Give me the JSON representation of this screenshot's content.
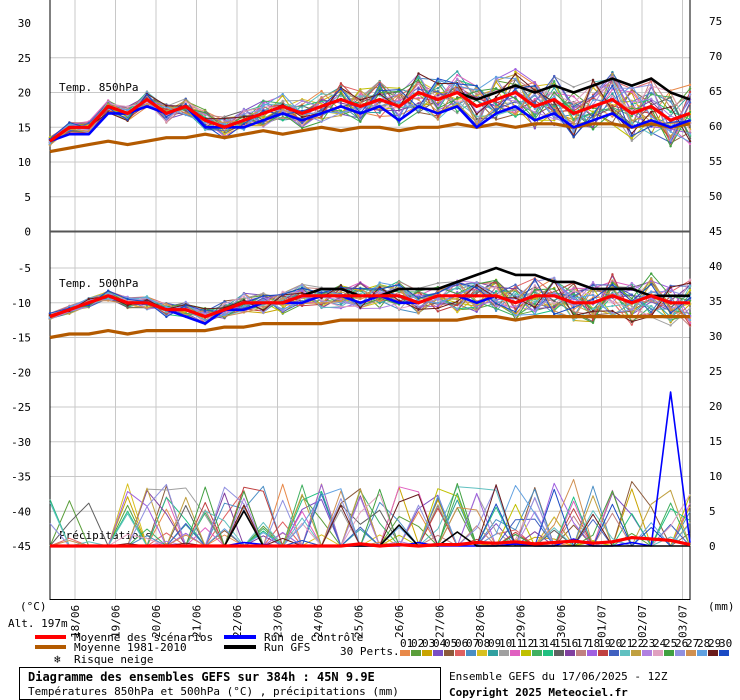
{
  "chart_data": {
    "type": "line",
    "title": "Diagramme des ensembles GEFS sur 384h : 45N 9.9E",
    "subtitle": "Températures 850hPa et 500hPa (°C) , précipitations (mm)",
    "left_axis_unit": "(°C)",
    "right_axis_unit": "(mm)",
    "altitude": "Alt. 197m",
    "left_ticks": [
      "30",
      "25",
      "20",
      "15",
      "10",
      "5",
      "0",
      "-5",
      "-10",
      "-15",
      "-20",
      "-25",
      "-30",
      "-35",
      "-40",
      "-45"
    ],
    "right_ticks": [
      "75",
      "70",
      "65",
      "60",
      "55",
      "50",
      "45",
      "40",
      "35",
      "30",
      "25",
      "20",
      "15",
      "10",
      "5",
      "0"
    ],
    "x_ticks": [
      "18/06",
      "19/06",
      "20/06",
      "21/06",
      "22/06",
      "23/06",
      "24/06",
      "25/06",
      "26/06",
      "27/06",
      "28/06",
      "29/06",
      "30/06",
      "01/07",
      "02/07",
      "03/07"
    ],
    "panel_labels": {
      "t850": "Temp. 850hPa",
      "t500": "Temp. 500hPa",
      "precip": "Précipitations"
    },
    "grid": true,
    "series": [
      {
        "name": "Moyenne des scénarios",
        "color": "#ff0000",
        "t850": [
          13,
          15,
          15,
          18,
          17,
          19,
          17,
          18,
          16,
          15,
          16,
          17,
          18,
          17,
          18,
          19,
          18,
          19,
          18,
          20,
          19,
          20,
          18,
          19,
          20,
          18,
          19,
          17,
          18,
          19,
          17,
          18,
          16,
          17
        ],
        "t500": [
          -12,
          -11,
          -10,
          -9,
          -10,
          -10,
          -11,
          -11,
          -12,
          -11,
          -10,
          -10,
          -10,
          -9,
          -9,
          -9,
          -9,
          -9,
          -9,
          -10,
          -9,
          -9,
          -9,
          -9,
          -10,
          -9,
          -9,
          -10,
          -10,
          -9,
          -10,
          -9,
          -10,
          -10
        ],
        "precip": [
          0,
          0,
          0,
          0,
          0,
          0,
          0,
          0,
          0,
          0,
          0,
          0,
          0,
          0,
          0,
          0,
          0.3,
          0,
          0.2,
          0,
          0.2,
          0.2,
          0.5,
          0.4,
          0.6,
          0.3,
          0.5,
          0.7,
          0.4,
          0.6,
          1.2,
          1.0,
          0.8,
          0.2
        ]
      },
      {
        "name": "Moyenne 1981-2010",
        "color": "#b35a00",
        "t850": [
          11.5,
          12,
          12.5,
          13,
          12.5,
          13,
          13.5,
          13.5,
          14,
          13.5,
          14,
          14.5,
          14,
          14.5,
          15,
          14.5,
          15,
          15,
          14.5,
          15,
          15,
          15.5,
          15,
          15.5,
          15,
          15.5,
          15.5,
          15,
          15.5,
          15.5,
          15,
          15.5,
          15,
          15.5
        ],
        "t500": [
          -15,
          -14.5,
          -14.5,
          -14,
          -14.5,
          -14,
          -14,
          -14,
          -14,
          -13.5,
          -13.5,
          -13,
          -13,
          -13,
          -13,
          -12.5,
          -12.5,
          -12.5,
          -12.5,
          -12.5,
          -12.5,
          -12.5,
          -12,
          -12,
          -12.5,
          -12,
          -12,
          -12,
          -12,
          -12,
          -12,
          -12,
          -12,
          -12
        ]
      },
      {
        "name": "Run de contrôle",
        "color": "#0000ff",
        "t850": [
          13,
          14,
          14,
          17,
          17,
          18,
          17,
          18,
          15,
          15,
          15,
          16,
          17,
          16,
          17,
          18,
          17,
          18,
          16,
          18,
          17,
          18,
          15,
          17,
          18,
          16,
          17,
          15,
          16,
          17,
          15,
          16,
          15,
          16
        ],
        "t500": [
          -12,
          -11,
          -10,
          -9,
          -10,
          -10,
          -11,
          -12,
          -13,
          -11,
          -11,
          -10,
          -10,
          -10,
          -9,
          -9,
          -10,
          -9,
          -10,
          -10,
          -9,
          -9,
          -10,
          -9,
          -10,
          -9,
          -9,
          -10,
          -10,
          -9,
          -10,
          -9,
          -10,
          -10
        ],
        "precip": [
          0,
          0,
          0,
          0,
          0,
          0,
          0,
          0,
          0,
          0,
          0.5,
          0.2,
          0,
          0,
          0,
          0,
          0,
          0,
          0,
          0.5,
          0,
          0,
          0,
          0,
          0.3,
          0,
          0,
          1,
          0,
          0,
          0.5,
          0,
          22,
          0.5
        ]
      },
      {
        "name": "Run GFS",
        "color": "#000000",
        "t850": [
          13,
          15,
          15,
          18,
          17,
          19,
          17,
          18,
          16,
          15,
          16,
          17,
          18,
          17,
          18,
          19,
          18,
          19,
          18,
          20,
          19,
          20,
          19,
          20,
          21,
          20,
          21,
          20,
          21,
          22,
          21,
          22,
          20,
          19
        ],
        "t500": [
          -12,
          -11,
          -10,
          -9,
          -10,
          -10,
          -11,
          -11,
          -12,
          -11,
          -10,
          -10,
          -10,
          -9,
          -8,
          -8,
          -9,
          -9,
          -8,
          -8,
          -8,
          -7,
          -6,
          -5,
          -6,
          -6,
          -7,
          -7,
          -8,
          -8,
          -8,
          -9,
          -9,
          -9
        ],
        "precip": [
          0,
          0,
          0,
          0,
          0,
          0,
          0,
          0,
          0,
          0,
          5,
          0,
          0,
          0,
          0,
          0,
          0,
          0,
          3,
          0,
          0,
          2,
          0,
          0,
          0,
          0,
          0,
          0,
          0,
          0,
          0,
          0,
          0,
          0
        ]
      }
    ],
    "legend": {
      "mean": "Moyenne des scénarios",
      "clim": "Moyenne 1981-2010",
      "control": "Run de contrôle",
      "gfs": "Run GFS",
      "snow": "Risque neige",
      "perts_label": "30 Perts.",
      "perts": [
        "01",
        "02",
        "03",
        "04",
        "05",
        "06",
        "07",
        "08",
        "09",
        "10",
        "11",
        "12",
        "13",
        "14",
        "15",
        "16",
        "17",
        "18",
        "19",
        "20",
        "21",
        "22",
        "23",
        "24",
        "25",
        "26",
        "27",
        "28",
        "29",
        "30"
      ],
      "pert_colors": [
        "#e8894a",
        "#5a9e3a",
        "#c9a400",
        "#7a4ec4",
        "#8c5a3a",
        "#e06060",
        "#4a8ec4",
        "#d8c020",
        "#30a0a0",
        "#a0a0a0",
        "#e060c0",
        "#c0c000",
        "#40b060",
        "#20c080",
        "#606060",
        "#8040a0",
        "#c08080",
        "#a060e0",
        "#c04040",
        "#4060c0",
        "#60c0c0",
        "#c0a040",
        "#b080e0",
        "#e0a0c0",
        "#40a040",
        "#9090e0",
        "#d09050",
        "#60a0e0",
        "#6a1a1a",
        "#1a4ac4"
      ]
    },
    "footer": {
      "ensemble": "Ensemble GEFS du 17/06/2025 - 12Z",
      "copyright": "Copyright 2025 Meteociel.fr"
    }
  }
}
